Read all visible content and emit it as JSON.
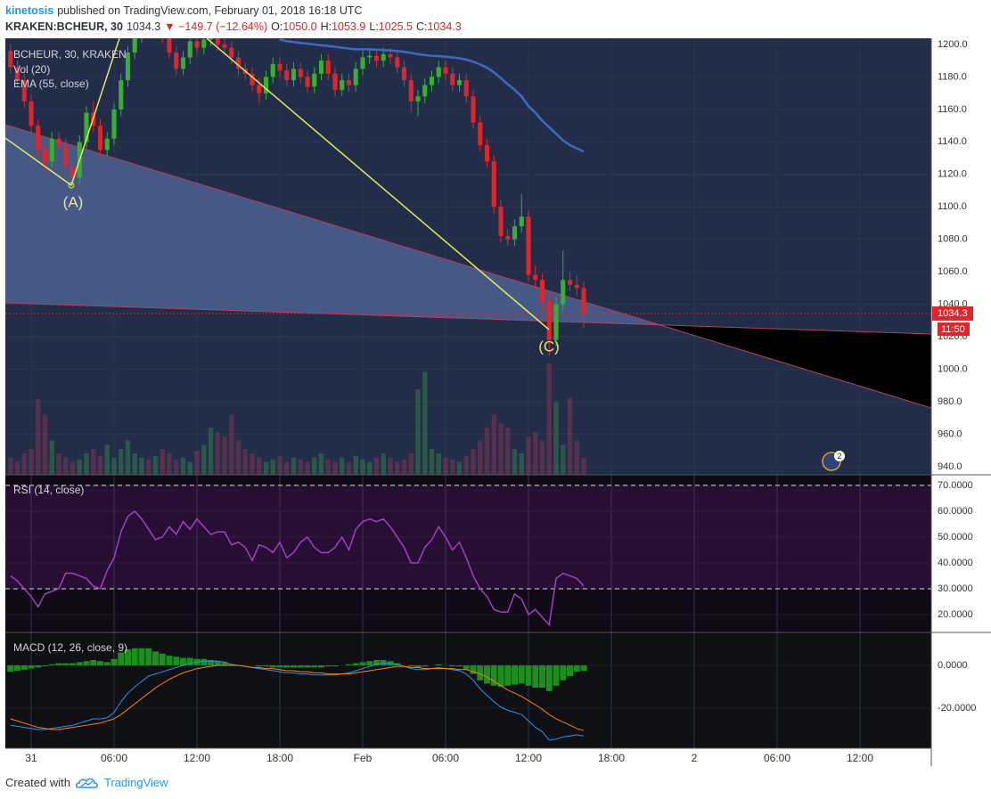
{
  "header": {
    "author": "kinetosis",
    "published": "published on TradingView.com, February 01, 2018 16:18 UTC",
    "symbol": "KRAKEN:BCHEUR, 30",
    "last": "1034.3",
    "change": "−149.7 (−12.64%)",
    "ohlc": [
      {
        "label": "O:",
        "value": "1050.0"
      },
      {
        "label": "H:",
        "value": "1053.9"
      },
      {
        "label": "L:",
        "value": "1025.5"
      },
      {
        "label": "C:",
        "value": "1034.3"
      }
    ]
  },
  "chart_data": {
    "type": "candlestick",
    "title": "BCHEUR, 30, KRAKEN",
    "volume_name": "Vol (20)",
    "annotations": [
      "(A)",
      "(C)"
    ],
    "countdown": "11:50",
    "badge": "2",
    "grid": true,
    "x": [
      -1.5,
      -1,
      -0.5,
      0,
      0.5,
      1,
      1.5,
      2,
      2.5,
      3,
      3.5,
      4,
      4.5,
      5,
      5.5,
      6,
      6.5,
      7,
      7.5,
      8,
      8.5,
      9,
      9.5,
      10,
      10.5,
      11,
      11.5,
      12,
      12.5,
      13,
      13.5,
      14,
      14.5,
      15,
      15.5,
      16,
      16.5,
      17,
      17.5,
      18,
      18.5,
      19,
      19.5,
      20,
      20.5,
      21,
      21.5,
      22,
      22.5,
      23,
      23.5,
      24,
      24.5,
      25,
      25.5,
      26,
      26.5,
      27,
      27.5,
      28,
      28.5,
      29,
      29.5,
      30,
      30.5,
      31,
      31.5,
      32,
      32.5,
      33,
      33.5,
      34,
      34.5,
      35,
      35.5,
      36,
      36.5,
      37,
      37.5,
      38,
      38.5,
      39,
      39.5,
      40
    ],
    "xlim": [
      -1.87,
      65.16
    ],
    "xticks": [
      {
        "value": 0,
        "label": "31"
      },
      {
        "value": 6,
        "label": "06:00"
      },
      {
        "value": 12,
        "label": "12:00"
      },
      {
        "value": 18,
        "label": "18:00"
      },
      {
        "value": 24,
        "label": "Feb"
      },
      {
        "value": 30,
        "label": "06:00"
      },
      {
        "value": 36,
        "label": "12:00"
      },
      {
        "value": 42,
        "label": "18:00"
      },
      {
        "value": 48,
        "label": "2"
      },
      {
        "value": 54,
        "label": "06:00"
      },
      {
        "value": 60,
        "label": "12:00"
      }
    ],
    "open": [
      1196,
      1186,
      1178,
      1165,
      1150,
      1135,
      1128,
      1142,
      1138,
      1125,
      1118,
      1140,
      1158,
      1150,
      1135,
      1142,
      1160,
      1178,
      1195,
      1205,
      1210,
      1208,
      1212,
      1205,
      1195,
      1185,
      1192,
      1202,
      1198,
      1203,
      1206,
      1200,
      1198,
      1192,
      1185,
      1182,
      1175,
      1170,
      1180,
      1188,
      1184,
      1178,
      1185,
      1180,
      1174,
      1182,
      1190,
      1182,
      1172,
      1178,
      1175,
      1185,
      1192,
      1193,
      1190,
      1194,
      1192,
      1186,
      1178,
      1165,
      1168,
      1175,
      1180,
      1186,
      1182,
      1175,
      1178,
      1168,
      1152,
      1138,
      1128,
      1100,
      1082,
      1080,
      1088,
      1094,
      1058,
      1055,
      1042,
      1018,
      1040,
      1055,
      1052,
      1050
    ],
    "high": [
      1200,
      1190,
      1182,
      1169,
      1154,
      1139,
      1146,
      1146,
      1142,
      1129,
      1144,
      1162,
      1165,
      1154,
      1146,
      1164,
      1182,
      1199,
      1209,
      1214,
      1214,
      1216,
      1216,
      1209,
      1199,
      1196,
      1206,
      1206,
      1207,
      1210,
      1210,
      1204,
      1202,
      1196,
      1189,
      1186,
      1179,
      1184,
      1192,
      1192,
      1188,
      1189,
      1189,
      1184,
      1186,
      1194,
      1194,
      1186,
      1182,
      1182,
      1189,
      1196,
      1197,
      1197,
      1198,
      1198,
      1196,
      1190,
      1182,
      1172,
      1179,
      1184,
      1190,
      1190,
      1186,
      1182,
      1182,
      1172,
      1156,
      1142,
      1132,
      1104,
      1086,
      1092,
      1108,
      1098,
      1064,
      1059,
      1046,
      1044,
      1073,
      1060,
      1058,
      1053.9
    ],
    "low": [
      1182,
      1174,
      1161,
      1146,
      1131,
      1122,
      1124,
      1134,
      1121,
      1112,
      1114,
      1136,
      1146,
      1131,
      1131,
      1138,
      1156,
      1174,
      1191,
      1201,
      1204,
      1204,
      1201,
      1191,
      1181,
      1181,
      1188,
      1194,
      1194,
      1199,
      1196,
      1194,
      1188,
      1181,
      1178,
      1171,
      1164,
      1166,
      1176,
      1180,
      1174,
      1174,
      1176,
      1170,
      1170,
      1178,
      1178,
      1168,
      1168,
      1171,
      1171,
      1181,
      1188,
      1186,
      1186,
      1188,
      1182,
      1174,
      1158,
      1156,
      1164,
      1171,
      1176,
      1178,
      1171,
      1171,
      1164,
      1148,
      1134,
      1124,
      1096,
      1078,
      1076,
      1076,
      1084,
      1054,
      1050,
      1036,
      1008,
      1014,
      1036,
      1048,
      1045,
      1025.5
    ],
    "close": [
      1186,
      1178,
      1165,
      1150,
      1135,
      1128,
      1142,
      1138,
      1125,
      1118,
      1140,
      1158,
      1150,
      1135,
      1142,
      1160,
      1178,
      1195,
      1205,
      1210,
      1208,
      1212,
      1205,
      1195,
      1185,
      1192,
      1202,
      1198,
      1203,
      1206,
      1200,
      1198,
      1192,
      1185,
      1182,
      1175,
      1170,
      1180,
      1188,
      1184,
      1178,
      1185,
      1180,
      1174,
      1182,
      1190,
      1182,
      1172,
      1178,
      1175,
      1185,
      1192,
      1193,
      1190,
      1194,
      1192,
      1186,
      1178,
      1165,
      1168,
      1175,
      1180,
      1186,
      1182,
      1175,
      1178,
      1168,
      1152,
      1138,
      1128,
      1100,
      1082,
      1080,
      1088,
      1094,
      1058,
      1055,
      1042,
      1018,
      1040,
      1055,
      1052,
      1050,
      1034.3
    ],
    "up_color": "#37b02f",
    "down_color": "#e0262c",
    "volume": [
      20,
      15,
      25,
      30,
      88,
      70,
      40,
      25,
      20,
      15,
      18,
      25,
      30,
      22,
      35,
      20,
      30,
      40,
      25,
      20,
      18,
      22,
      30,
      25,
      18,
      20,
      15,
      28,
      35,
      55,
      50,
      45,
      70,
      40,
      30,
      25,
      20,
      15,
      18,
      22,
      15,
      20,
      18,
      15,
      20,
      25,
      18,
      15,
      20,
      15,
      22,
      18,
      15,
      20,
      25,
      20,
      15,
      18,
      25,
      100,
      120,
      30,
      25,
      20,
      18,
      15,
      22,
      30,
      40,
      55,
      70,
      60,
      55,
      30,
      25,
      45,
      50,
      40,
      130,
      85,
      35,
      90,
      40,
      20
    ],
    "volume_up_color": "rgba(60,170,70,0.35)",
    "volume_down_color": "rgba(210,60,90,0.3)",
    "series": [
      {
        "name": "EMA (55, close)",
        "color": "#4268c4",
        "values": [
          null,
          null,
          null,
          null,
          null,
          null,
          null,
          null,
          null,
          null,
          null,
          null,
          null,
          null,
          null,
          null,
          null,
          null,
          null,
          null,
          null,
          null,
          null,
          null,
          null,
          null,
          null,
          null,
          null,
          null,
          null,
          null,
          null,
          null,
          null,
          null,
          null,
          null,
          null,
          1203,
          1202,
          1201.5,
          1201,
          1200.5,
          1200,
          1199.5,
          1199,
          1198.5,
          1198,
          1197.5,
          1197,
          1197,
          1197,
          1196.8,
          1196.5,
          1196.3,
          1196,
          1195.5,
          1194.8,
          1194,
          1193.5,
          1193,
          1192.8,
          1192.5,
          1192,
          1191.5,
          1190.7,
          1189.4,
          1187.7,
          1185.7,
          1182.8,
          1179.3,
          1175.5,
          1172,
          1168,
          1162,
          1158,
          1153,
          1149,
          1145,
          1141,
          1138,
          1136,
          1134
        ]
      }
    ],
    "ylim": [
      935,
      1203.8
    ],
    "yticks": [
      {
        "value": 940,
        "label": "940.0"
      },
      {
        "value": 960,
        "label": "960.0"
      },
      {
        "value": 980,
        "label": "980.0"
      },
      {
        "value": 1000,
        "label": "1000.0"
      },
      {
        "value": 1020,
        "label": "1020.0"
      },
      {
        "value": 1040,
        "label": "1040.0"
      },
      {
        "value": 1060,
        "label": "1060.0"
      },
      {
        "value": 1080,
        "label": "1080.0"
      },
      {
        "value": 1100,
        "label": "1100.0"
      },
      {
        "value": 1120,
        "label": "1120.0"
      },
      {
        "value": 1140,
        "label": "1140.0"
      },
      {
        "value": 1160,
        "label": "1160.0"
      },
      {
        "value": 1180,
        "label": "1180.0"
      },
      {
        "value": 1200,
        "label": "1200.0"
      }
    ],
    "rsi": {
      "title": "RSI (14, close)",
      "color": "#a23ec8",
      "ylim": [
        13.1,
        74.1
      ],
      "bands": [
        30,
        70
      ],
      "yticks": [
        {
          "value": 20,
          "label": "20.0000"
        },
        {
          "value": 30,
          "label": "30.0000"
        },
        {
          "value": 40,
          "label": "40.0000"
        },
        {
          "value": 50,
          "label": "50.0000"
        },
        {
          "value": 60,
          "label": "60.0000"
        },
        {
          "value": 70,
          "label": "70.0000"
        }
      ],
      "values": [
        35,
        33,
        30,
        27,
        23,
        28,
        29,
        30,
        36,
        36,
        35,
        34,
        31,
        30,
        37,
        42,
        52,
        58,
        60,
        57,
        53,
        49,
        50,
        54,
        51,
        56,
        53,
        57,
        54,
        51,
        52,
        52,
        47,
        48,
        46,
        41,
        47,
        46,
        44,
        48,
        42,
        44,
        48,
        50,
        46,
        44,
        44,
        46,
        50,
        45,
        53,
        56,
        57,
        56,
        57,
        54,
        50,
        46,
        40,
        40,
        46,
        49,
        54,
        50,
        45,
        48,
        42,
        35,
        30,
        27,
        22,
        21,
        21,
        28,
        26,
        20,
        22,
        19,
        16,
        34,
        36,
        35,
        34,
        31
      ]
    },
    "macd": {
      "title": "MACD (12, 26, close, 9)",
      "ylim": [
        -38.75,
        15.4
      ],
      "yticks": [
        {
          "value": -20,
          "label": "-20.0000"
        },
        {
          "value": 0,
          "label": "0.0000"
        }
      ],
      "macd": {
        "color": "#2196f3",
        "values": [
          -28,
          -28.5,
          -29,
          -29.5,
          -30,
          -30,
          -29.5,
          -29,
          -28.5,
          -28,
          -27,
          -26,
          -25,
          -25,
          -24.5,
          -22,
          -17,
          -13,
          -10,
          -7.5,
          -5,
          -4,
          -3,
          -2,
          -1,
          0,
          1,
          1.5,
          2,
          2,
          2,
          1.5,
          0.5,
          0,
          -0.5,
          -1,
          -1.5,
          -2,
          -2.5,
          -3,
          -3.5,
          -3.5,
          -4,
          -4,
          -4.5,
          -4.5,
          -4.5,
          -4.5,
          -4,
          -3.5,
          -2.5,
          -1.5,
          -0.5,
          0.5,
          1,
          1,
          0.5,
          -0.5,
          -1.5,
          -2,
          -2,
          -1.5,
          -1,
          -1.5,
          -2,
          -2.5,
          -4,
          -7,
          -11,
          -14,
          -17,
          -19.5,
          -21,
          -22,
          -23,
          -26,
          -29,
          -31,
          -35,
          -34.5,
          -33.5,
          -33,
          -32.5,
          -33
        ]
      },
      "signal": {
        "color": "#ff7f0e",
        "values": [
          -25,
          -26,
          -27,
          -28,
          -29,
          -29.5,
          -30,
          -30,
          -29.5,
          -29,
          -28.5,
          -28,
          -27.5,
          -27,
          -26,
          -25,
          -23,
          -20.5,
          -18,
          -15.5,
          -13,
          -10.5,
          -8.5,
          -6.5,
          -5,
          -3.5,
          -2.5,
          -1.5,
          -1,
          -0.5,
          0,
          0,
          0,
          0,
          -0.5,
          -1,
          -1,
          -1.5,
          -1.5,
          -2,
          -2.5,
          -2.5,
          -3,
          -3,
          -3.5,
          -3.5,
          -4,
          -4,
          -4,
          -4,
          -3.5,
          -3,
          -2.5,
          -2,
          -1.5,
          -1,
          -0.5,
          -0.5,
          -1,
          -1,
          -1.5,
          -1.5,
          -1.5,
          -1.5,
          -1.5,
          -2,
          -2,
          -3,
          -4,
          -5.5,
          -7.5,
          -9.5,
          -11.5,
          -13,
          -14.5,
          -16.5,
          -18.5,
          -20.5,
          -23,
          -25,
          -26.5,
          -28,
          -29.5,
          -30.5
        ]
      },
      "histogram": {
        "color": "#1b8f1b",
        "values": [
          -3,
          -2.5,
          -2,
          -1.5,
          -1,
          -0.5,
          0.5,
          1,
          1,
          1,
          1.5,
          2,
          2.5,
          2,
          1.5,
          3,
          6,
          7.5,
          8,
          8,
          8,
          6.5,
          5.5,
          4.5,
          4,
          3.5,
          3.5,
          3,
          3,
          2.5,
          2,
          1.5,
          0.5,
          0,
          0,
          0,
          -0.5,
          -0.5,
          -1,
          -1,
          -1,
          -1,
          -1,
          -1,
          -1,
          -1,
          -0.5,
          -0.5,
          0,
          0.5,
          1,
          1.5,
          2,
          2.5,
          2.5,
          2,
          1,
          0,
          -0.5,
          -1,
          -0.5,
          0,
          0.5,
          0,
          -0.5,
          -0.5,
          -2,
          -4,
          -7,
          -8.5,
          -9.5,
          -10,
          -9.5,
          -9,
          -8.5,
          -9.5,
          -10.5,
          -10.5,
          -12,
          -9.5,
          -7,
          -5,
          -3,
          -2.5
        ]
      }
    }
  },
  "footer": {
    "text": "Created with",
    "brand": "TradingView"
  }
}
